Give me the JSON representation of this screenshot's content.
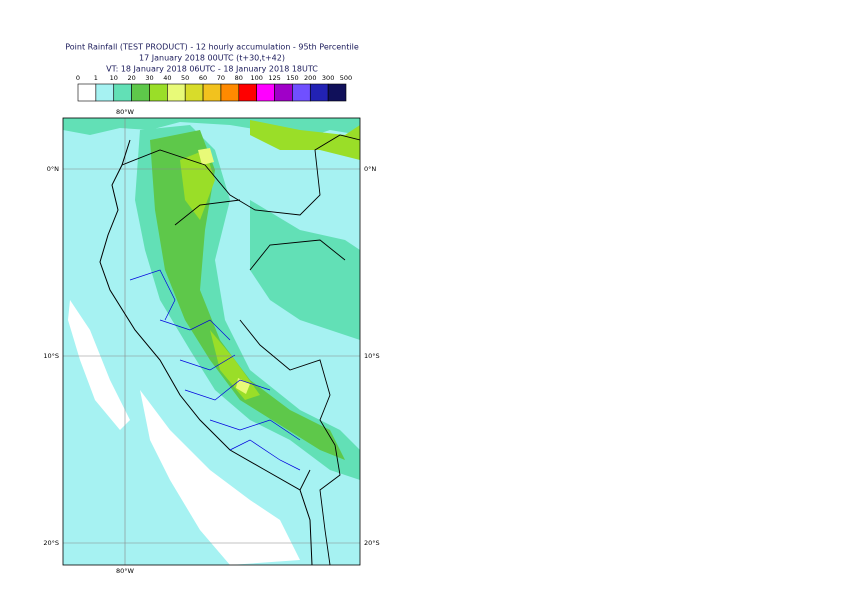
{
  "header": {
    "title": "Point Rainfall (TEST PRODUCT) - 12 hourly accumulation - 95th Percentile",
    "subtitle": "17 January 2018 00UTC (t+30,t+42)",
    "valid_time": "VT: 18 January 2018 06UTC - 18 January 2018 18UTC"
  },
  "legend": {
    "thresholds": [
      0,
      1,
      10,
      20,
      30,
      40,
      50,
      60,
      70,
      80,
      100,
      125,
      150,
      200,
      300,
      500
    ],
    "colors": [
      "#ffffff",
      "#a6f2f2",
      "#62e0b6",
      "#5ec84a",
      "#9ade28",
      "#e8fa78",
      "#d8dc2a",
      "#f2c21e",
      "#ff8a00",
      "#ff0000",
      "#ff00ff",
      "#a000c8",
      "#7050ff",
      "#2222b4",
      "#10105a"
    ]
  },
  "map": {
    "lon_labels": {
      "top": "80°W",
      "bottom": "80°W"
    },
    "lat_labels": [
      "0°N",
      "10°S",
      "20°S"
    ]
  }
}
